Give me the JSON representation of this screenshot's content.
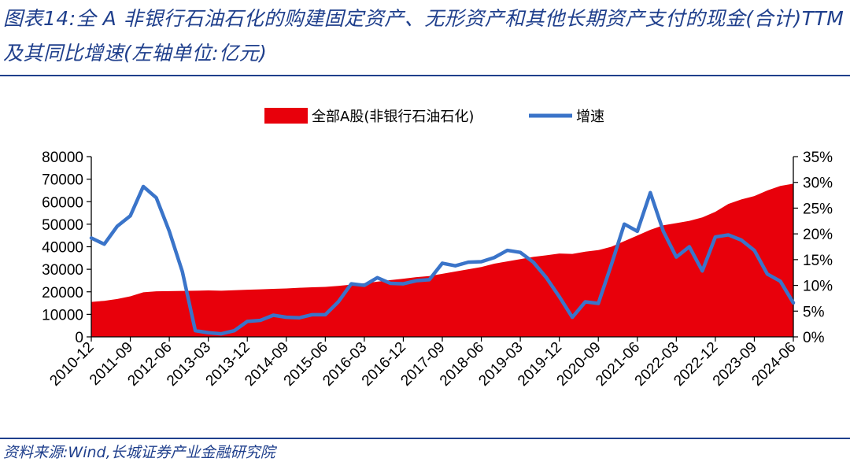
{
  "header": {
    "title": "图表14:全 A 非银行石油石化的购建固定资产、无形资产和其他长期资产支付的现金(合计)TTM及其同比增速(左轴单位:亿元)"
  },
  "footer": {
    "source": "资料来源:Wind,长城证券产业金融研究院"
  },
  "colors": {
    "area": "#e8000b",
    "line": "#3a74c9",
    "text_blue": "#1f3f8c"
  },
  "chart_data": {
    "type": "area",
    "legend_position": "top-center",
    "grid": false,
    "x": [
      "2010-12",
      "2011-03",
      "2011-06",
      "2011-09",
      "2011-12",
      "2012-03",
      "2012-06",
      "2012-09",
      "2012-12",
      "2013-03",
      "2013-06",
      "2013-09",
      "2013-12",
      "2014-03",
      "2014-06",
      "2014-09",
      "2014-12",
      "2015-03",
      "2015-06",
      "2015-09",
      "2015-12",
      "2016-03",
      "2016-06",
      "2016-09",
      "2016-12",
      "2017-03",
      "2017-06",
      "2017-09",
      "2017-12",
      "2018-03",
      "2018-06",
      "2018-09",
      "2018-12",
      "2019-03",
      "2019-06",
      "2019-09",
      "2019-12",
      "2020-03",
      "2020-06",
      "2020-09",
      "2020-12",
      "2021-03",
      "2021-06",
      "2021-09",
      "2021-12",
      "2022-03",
      "2022-06",
      "2022-09",
      "2022-12",
      "2023-03",
      "2023-06",
      "2023-09",
      "2023-12",
      "2024-03",
      "2024-06"
    ],
    "x_tick_labels": [
      "2010-12",
      "2011-09",
      "2012-06",
      "2013-03",
      "2013-12",
      "2014-09",
      "2015-06",
      "2016-03",
      "2016-12",
      "2017-09",
      "2018-06",
      "2019-03",
      "2019-12",
      "2020-09",
      "2021-06",
      "2022-03",
      "2022-12",
      "2023-09",
      "2024-06"
    ],
    "left_axis": {
      "ylim": [
        0,
        80000
      ],
      "ticks": [
        "0",
        "10000",
        "20000",
        "30000",
        "40000",
        "50000",
        "60000",
        "70000",
        "80000"
      ]
    },
    "right_axis": {
      "ylim": [
        0,
        35
      ],
      "ticks": [
        "0%",
        "5%",
        "10%",
        "15%",
        "20%",
        "25%",
        "30%",
        "35%"
      ]
    },
    "series": [
      {
        "name": "全部A股(非银行石油石化)",
        "kind": "area",
        "axis": "left",
        "values": [
          15500,
          16000,
          16800,
          18000,
          19800,
          20200,
          20300,
          20400,
          20500,
          20600,
          20500,
          20700,
          20900,
          21100,
          21300,
          21500,
          21800,
          22000,
          22200,
          22600,
          23200,
          23800,
          24500,
          25200,
          25800,
          26500,
          27000,
          28000,
          29000,
          30000,
          31000,
          32500,
          33500,
          34500,
          35500,
          36200,
          37000,
          36800,
          37800,
          38500,
          40000,
          42500,
          45000,
          47500,
          49500,
          50500,
          51500,
          53000,
          55500,
          59000,
          61000,
          62500,
          65000,
          67000,
          68000
        ]
      },
      {
        "name": "增速",
        "kind": "line",
        "axis": "right",
        "values": [
          19.2,
          18.0,
          21.5,
          23.5,
          29.2,
          27.0,
          20.5,
          12.7,
          1.2,
          0.8,
          0.6,
          1.2,
          3.0,
          3.2,
          4.2,
          3.8,
          3.7,
          4.3,
          4.3,
          6.8,
          10.3,
          10.0,
          11.5,
          10.4,
          10.3,
          10.9,
          11.1,
          14.3,
          13.8,
          14.5,
          14.6,
          15.4,
          16.8,
          16.4,
          14.5,
          11.5,
          7.8,
          3.8,
          6.8,
          6.5,
          14.0,
          21.9,
          20.5,
          28.0,
          20.5,
          15.5,
          17.5,
          12.8,
          19.4,
          19.8,
          18.8,
          16.8,
          12.2,
          10.8,
          6.6
        ]
      }
    ]
  }
}
